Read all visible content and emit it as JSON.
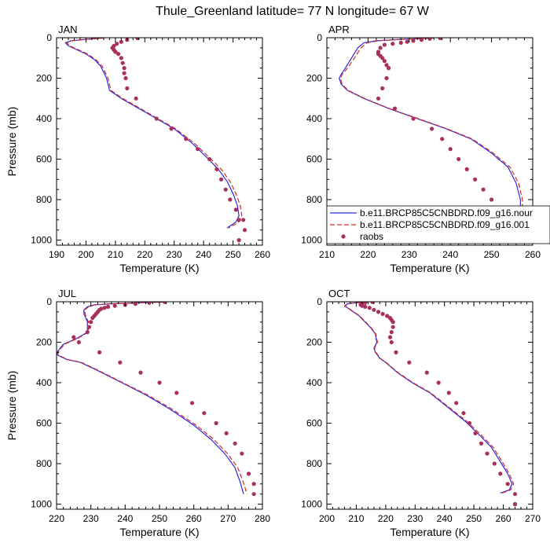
{
  "title": "Thule_Greenland  latitude= 77 N longitude= 67 W",
  "colors": {
    "model_1": "#2b2bdc",
    "model_2": "#d42a2a",
    "raobs": "#a8305e"
  },
  "legend": {
    "panel": "APR",
    "entries": [
      "b.e11.BRCP85C5CNBDRD.f09_g16.nour",
      "b.e11.BRCP85C5CNBDRD.f09_g16.001",
      "raobs"
    ]
  },
  "chart_data": [
    {
      "type": "line",
      "panel": "JAN",
      "xlabel": "Temperature (K)",
      "ylabel": "Pressure (mb)",
      "xlim": [
        190,
        260
      ],
      "xticks": [
        190,
        200,
        210,
        220,
        230,
        240,
        250,
        260
      ],
      "ylim": [
        0,
        1025
      ],
      "yticks": [
        0,
        200,
        400,
        600,
        800,
        1000
      ],
      "y_inverted": true,
      "series": [
        {
          "name": "b.e11.BRCP85C5CNBDRD.f09_g16.nour",
          "style": "solid",
          "x": [
            206,
            200,
            195,
            193,
            194,
            197,
            200,
            203,
            205,
            206,
            207,
            208,
            212,
            218,
            224,
            230,
            236,
            241,
            245,
            248,
            250,
            251.5,
            252,
            251,
            248
          ],
          "y": [
            1,
            8,
            15,
            25,
            40,
            60,
            80,
            110,
            140,
            170,
            200,
            260,
            300,
            350,
            400,
            450,
            520,
            590,
            650,
            710,
            770,
            830,
            880,
            910,
            940
          ]
        },
        {
          "name": "b.e11.BRCP85C5CNBDRD.f09_g16.001",
          "style": "dashed",
          "x": [
            206,
            200,
            195,
            193.5,
            194.5,
            197.5,
            200.5,
            203.5,
            205.5,
            206.5,
            207.5,
            208.5,
            212.5,
            218.5,
            224.5,
            230.5,
            236.7,
            241.8,
            246,
            249,
            251,
            252.5,
            253,
            252,
            248.5
          ],
          "y": [
            1,
            8,
            15,
            25,
            40,
            60,
            80,
            110,
            140,
            170,
            200,
            260,
            300,
            350,
            400,
            450,
            520,
            590,
            650,
            710,
            770,
            830,
            880,
            910,
            940
          ]
        },
        {
          "name": "raobs",
          "style": "points",
          "x": [
            217.5,
            214,
            212,
            210.5,
            209.5,
            209,
            209.5,
            210,
            211,
            212,
            212.5,
            213,
            213,
            213.5,
            214,
            217,
            224,
            229,
            234,
            238,
            242,
            244.5,
            246,
            247.5,
            249,
            251,
            252,
            253.5,
            254,
            252
          ],
          "y": [
            2,
            10,
            20,
            30,
            40,
            50,
            60,
            70,
            80,
            100,
            125,
            150,
            175,
            200,
            250,
            300,
            400,
            450,
            500,
            550,
            600,
            650,
            700,
            750,
            800,
            850,
            900,
            900,
            950,
            1000
          ]
        }
      ]
    },
    {
      "type": "line",
      "panel": "APR",
      "xlabel": "Temperature (K)",
      "ylabel": "",
      "xlim": [
        210,
        260
      ],
      "xticks": [
        210,
        220,
        230,
        240,
        250,
        260
      ],
      "ylim": [
        0,
        1025
      ],
      "yticks": [
        0,
        200,
        400,
        600,
        800,
        1000
      ],
      "y_inverted": true,
      "series": [
        {
          "name": "b.e11.BRCP85C5CNBDRD.f09_g16.nour",
          "style": "solid",
          "x": [
            236,
            228,
            222,
            219,
            217.5,
            216,
            214.5,
            213.5,
            213,
            213.5,
            215,
            219,
            225,
            232,
            239,
            245,
            250,
            254,
            256,
            257,
            257,
            256.5,
            255
          ],
          "y": [
            1,
            8,
            15,
            25,
            50,
            100,
            150,
            180,
            200,
            230,
            260,
            300,
            350,
            400,
            450,
            500,
            570,
            640,
            720,
            800,
            860,
            920,
            950
          ]
        },
        {
          "name": "b.e11.BRCP85C5CNBDRD.f09_g16.001",
          "style": "dashed",
          "x": [
            236,
            228,
            222.5,
            219.8,
            218.3,
            216.7,
            215,
            213.8,
            213.3,
            213.7,
            215.2,
            219.2,
            225.2,
            232.2,
            239.2,
            245.3,
            250.4,
            254.5,
            256.6,
            257.5,
            257.5,
            257,
            255.5
          ],
          "y": [
            1,
            8,
            15,
            25,
            50,
            100,
            150,
            180,
            200,
            230,
            260,
            300,
            350,
            400,
            450,
            500,
            570,
            640,
            720,
            800,
            860,
            920,
            950
          ]
        },
        {
          "name": "raobs",
          "style": "points",
          "x": [
            237.5,
            235,
            233,
            231,
            229.5,
            228,
            226,
            224,
            223,
            222.5,
            222.5,
            223,
            223.5,
            224,
            224.5,
            225,
            224.5,
            223.5,
            222.5,
            226.5,
            231,
            235.5,
            238,
            240,
            242,
            244,
            246,
            248,
            250,
            252,
            254,
            255.5,
            257,
            257,
            257
          ],
          "y": [
            2,
            5,
            10,
            15,
            20,
            25,
            30,
            35,
            50,
            70,
            80,
            90,
            100,
            115,
            135,
            150,
            200,
            250,
            300,
            350,
            400,
            450,
            500,
            550,
            600,
            650,
            700,
            750,
            800,
            850,
            900,
            950,
            950,
            1000,
            1000
          ]
        }
      ]
    },
    {
      "type": "line",
      "panel": "JUL",
      "xlabel": "Temperature (K)",
      "ylabel": "Pressure (mb)",
      "xlim": [
        220,
        280
      ],
      "xticks": [
        220,
        230,
        240,
        250,
        260,
        270,
        280
      ],
      "ylim": [
        0,
        1025
      ],
      "yticks": [
        0,
        200,
        400,
        600,
        800,
        1000
      ],
      "y_inverted": true,
      "series": [
        {
          "name": "b.e11.BRCP85C5CNBDRD.f09_g16.nour",
          "style": "solid",
          "x": [
            252,
            244,
            236,
            231,
            229,
            228,
            228,
            228.5,
            229,
            229,
            226,
            222,
            220.5,
            220,
            221,
            223,
            227,
            232,
            239,
            246,
            253,
            260,
            265,
            269,
            272,
            273.5,
            274.5
          ],
          "y": [
            1,
            5,
            10,
            15,
            25,
            40,
            60,
            80,
            100,
            150,
            180,
            210,
            240,
            260,
            270,
            285,
            300,
            340,
            400,
            460,
            530,
            610,
            680,
            750,
            820,
            890,
            950
          ]
        },
        {
          "name": "b.e11.BRCP85C5CNBDRD.f09_g16.001",
          "style": "dashed",
          "x": [
            252,
            244,
            236,
            231.3,
            229.3,
            228.3,
            228.3,
            228.8,
            229.3,
            229.3,
            226.3,
            222.3,
            220.8,
            220.3,
            221.3,
            223.3,
            227.3,
            232.3,
            239.3,
            246.5,
            253.6,
            260.7,
            265.8,
            269.8,
            272.8,
            274.4,
            275.5
          ],
          "y": [
            1,
            5,
            10,
            15,
            25,
            40,
            60,
            80,
            100,
            150,
            180,
            210,
            240,
            260,
            270,
            285,
            300,
            340,
            400,
            460,
            530,
            610,
            680,
            750,
            820,
            890,
            950
          ]
        },
        {
          "name": "raobs",
          "style": "points",
          "x": [
            251.5,
            247,
            243,
            240,
            237,
            235,
            234,
            233,
            232.5,
            232,
            231.5,
            231,
            230.5,
            230,
            229.5,
            229,
            225,
            226.5,
            232.5,
            238.5,
            244.5,
            250,
            255,
            259.5,
            263,
            266.5,
            269.5,
            272,
            274,
            276,
            277.5,
            277.5
          ],
          "y": [
            1,
            5,
            10,
            15,
            20,
            25,
            30,
            35,
            40,
            50,
            60,
            70,
            80,
            100,
            125,
            150,
            175,
            200,
            250,
            300,
            350,
            400,
            450,
            500,
            550,
            600,
            650,
            700,
            750,
            850,
            900,
            950
          ]
        }
      ]
    },
    {
      "type": "line",
      "panel": "OCT",
      "xlabel": "Temperature (K)",
      "ylabel": "",
      "xlim": [
        200,
        270
      ],
      "xticks": [
        200,
        210,
        220,
        230,
        240,
        250,
        260,
        270
      ],
      "ylim": [
        0,
        1025
      ],
      "yticks": [
        0,
        200,
        400,
        600,
        800,
        1000
      ],
      "y_inverted": true,
      "series": [
        {
          "name": "b.e11.BRCP85C5CNBDRD.f09_g16.nour",
          "style": "solid",
          "x": [
            214,
            210,
            207,
            206,
            207,
            209,
            211,
            213,
            215,
            216.5,
            217,
            216.5,
            216,
            216.5,
            218,
            220,
            224,
            229,
            235,
            241,
            247,
            252,
            256,
            259,
            261.5,
            263,
            262,
            259
          ],
          "y": [
            1,
            5,
            10,
            20,
            30,
            50,
            70,
            100,
            130,
            160,
            200,
            215,
            230,
            250,
            280,
            300,
            350,
            400,
            450,
            520,
            590,
            660,
            720,
            790,
            850,
            900,
            930,
            945
          ]
        },
        {
          "name": "b.e11.BRCP85C5CNBDRD.f09_g16.001",
          "style": "dashed",
          "x": [
            214,
            210,
            207.2,
            206.2,
            207.2,
            209.2,
            211.2,
            213.2,
            215.2,
            216.7,
            217.2,
            216.7,
            216.2,
            216.7,
            218.2,
            220.2,
            224.2,
            229.3,
            235.3,
            241.4,
            247.5,
            252.6,
            256.6,
            259.6,
            262,
            263.5,
            262.5,
            259.5
          ],
          "y": [
            1,
            5,
            10,
            20,
            30,
            50,
            70,
            100,
            130,
            160,
            200,
            215,
            230,
            250,
            280,
            300,
            350,
            400,
            450,
            520,
            590,
            660,
            720,
            790,
            850,
            900,
            930,
            945
          ]
        },
        {
          "name": "raobs",
          "style": "points",
          "x": [
            215.5,
            213,
            212,
            211.5,
            212,
            213,
            214.5,
            216,
            217.5,
            219,
            220.5,
            221.5,
            222,
            222.5,
            222.5,
            222,
            221.5,
            222,
            223.5,
            228,
            234,
            238,
            241.5,
            244,
            246.5,
            248.5,
            250.5,
            252.5,
            254.5,
            257,
            259,
            261.5,
            264,
            264,
            264
          ],
          "y": [
            1,
            5,
            10,
            15,
            20,
            25,
            30,
            40,
            50,
            60,
            70,
            80,
            90,
            100,
            125,
            150,
            175,
            200,
            250,
            300,
            350,
            400,
            450,
            500,
            550,
            600,
            650,
            700,
            750,
            800,
            850,
            900,
            950,
            1000,
            1000
          ]
        }
      ]
    }
  ]
}
